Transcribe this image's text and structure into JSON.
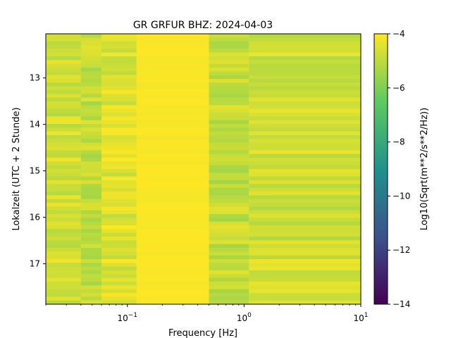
{
  "chart_data": {
    "type": "heatmap",
    "title": "GR GRFUR  BHZ: 2024-04-03",
    "xlabel": "Frequency [Hz]",
    "ylabel": "Lokalzeit (UTC + 2 Stunde)",
    "x_scale": "log",
    "x_range_hz": [
      0.02,
      10
    ],
    "x_ticks": [
      {
        "value": 0.1,
        "base": "10",
        "exp": "−1"
      },
      {
        "value": 1,
        "base": "10",
        "exp": "0"
      },
      {
        "value": 10,
        "base": "10",
        "exp": "1"
      }
    ],
    "y_range_hours": [
      12.05,
      17.87
    ],
    "y_inverted": true,
    "y_ticks": [
      "13",
      "14",
      "15",
      "16",
      "17"
    ],
    "colorbar": {
      "label": "Log10(Sqrt(m**2/s**2/Hz))",
      "colormap": "viridis",
      "range": [
        -14,
        -4
      ],
      "ticks": [
        "−4",
        "−6",
        "−8",
        "−10",
        "−12",
        "−14"
      ]
    },
    "bands": [
      {
        "f_min": 0.02,
        "f_max": 0.04,
        "value": -4.7
      },
      {
        "f_min": 0.04,
        "f_max": 0.06,
        "value": -4.9
      },
      {
        "f_min": 0.06,
        "f_max": 0.12,
        "value": -4.5
      },
      {
        "f_min": 0.12,
        "f_max": 0.5,
        "value": -4.05
      },
      {
        "f_min": 0.5,
        "f_max": 1.1,
        "value": -4.9
      },
      {
        "f_min": 1.1,
        "f_max": 10,
        "value": -4.7
      }
    ]
  }
}
